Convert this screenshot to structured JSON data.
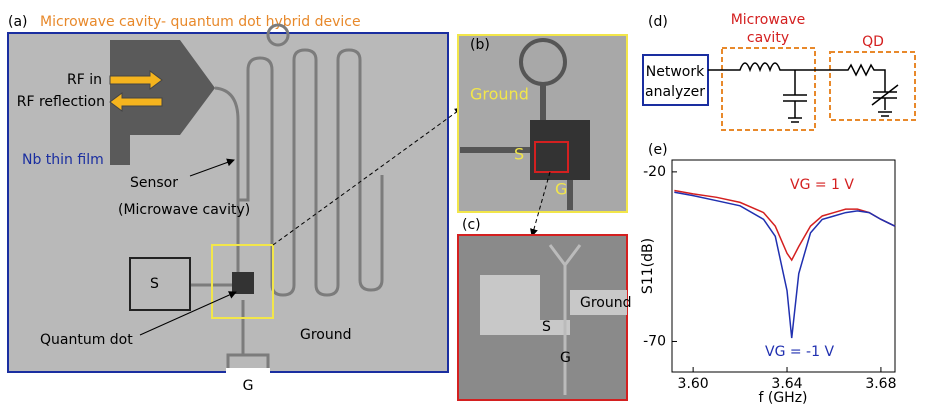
{
  "panel_a": {
    "label": "(a)",
    "title": "Microwave cavity- quantum dot hybrid device",
    "rf_in": "RF in",
    "rf_reflection": "RF reflection",
    "film": "Nb thin film",
    "sensor": [
      "Sensor",
      "(Microwave cavity)"
    ],
    "source": "S",
    "quantum_dot": "Quantum dot",
    "ground": "Ground",
    "gate": "G"
  },
  "panel_b": {
    "label": "(b)",
    "ground": "Ground",
    "source": "S",
    "gate": "G"
  },
  "panel_c": {
    "label": "(c)",
    "ground": "Ground",
    "source": "S",
    "gate": "G"
  },
  "panel_d": {
    "label": "(d)",
    "cavity": [
      "Microwave",
      "cavity"
    ],
    "qd": "QD",
    "analyzer": [
      "Network",
      "analyzer"
    ]
  },
  "chart_data": {
    "type": "line",
    "label": "(e)",
    "xlabel": "f (GHz)",
    "ylabel": "S11(dB)",
    "x": [
      3.592,
      3.6,
      3.61,
      3.62,
      3.63,
      3.635,
      3.64,
      3.642,
      3.645,
      3.65,
      3.655,
      3.66,
      3.665,
      3.67,
      3.675,
      3.68,
      3.686
    ],
    "series": [
      {
        "name": "VG = 1 V",
        "color": "#d42020",
        "values": [
          -25.5,
          -26.5,
          -27.5,
          -29,
          -32,
          -36,
          -44,
          -46,
          -42,
          -36,
          -33,
          -32,
          -31,
          -31,
          -32,
          -34,
          -36
        ]
      },
      {
        "name": "VG = -1 V",
        "color": "#2030b0",
        "values": [
          -26,
          -27,
          -28.5,
          -30,
          -34,
          -39,
          -55,
          -69,
          -50,
          -38,
          -34,
          -33,
          -32,
          -31.5,
          -32,
          -34,
          -36
        ]
      }
    ],
    "xlim": [
      3.591,
      3.686
    ],
    "ylim": [
      -79,
      -16.5
    ],
    "xticks": [
      {
        "value": 3.6,
        "label": "3.60"
      },
      {
        "value": 3.64,
        "label": "3.64"
      },
      {
        "value": 3.68,
        "label": "3.68"
      }
    ],
    "yticks": [
      -20,
      -70
    ]
  }
}
